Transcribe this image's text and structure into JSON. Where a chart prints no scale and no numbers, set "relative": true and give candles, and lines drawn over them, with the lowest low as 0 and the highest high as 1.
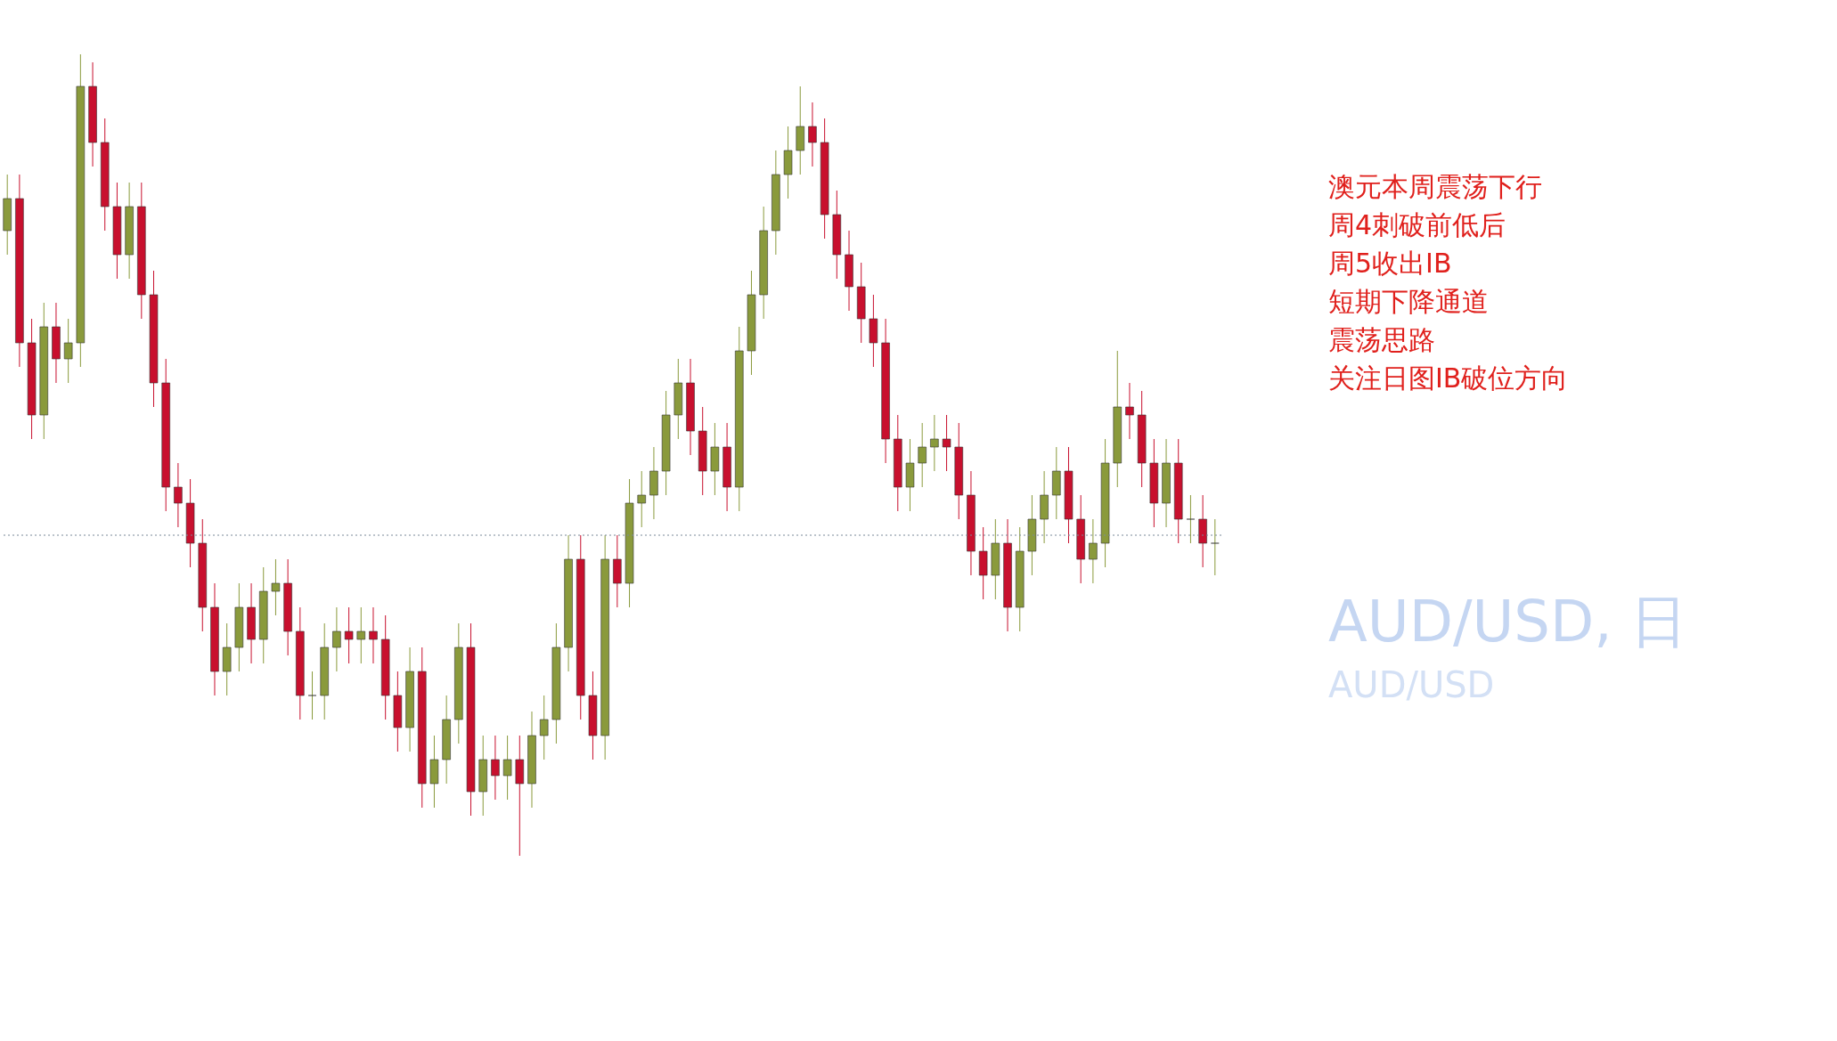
{
  "chart_data": {
    "type": "candlestick",
    "title": "AUD/USD, 日",
    "subtitle": "AUD/USD",
    "relative": true,
    "categories": [
      null,
      null,
      null,
      null,
      null,
      null,
      null,
      null,
      null,
      null,
      null,
      null,
      null,
      null,
      null,
      null,
      null,
      null,
      null,
      null,
      null,
      null,
      null,
      null,
      null,
      null,
      null,
      null,
      null,
      null,
      null,
      null,
      null,
      null,
      null,
      null,
      null,
      null,
      null,
      null,
      null,
      null,
      null,
      null,
      null,
      null,
      null,
      null,
      null,
      null,
      null,
      null,
      null,
      null,
      null,
      null,
      null,
      null,
      null,
      null,
      null,
      null,
      null,
      null,
      null,
      null,
      null,
      null,
      null,
      null,
      null,
      null,
      null,
      null,
      null,
      null,
      null,
      null,
      null,
      null,
      null,
      null,
      null,
      null,
      null,
      null,
      null,
      null,
      null,
      null,
      null,
      null,
      null,
      null,
      null,
      null,
      null,
      null,
      null,
      null
    ],
    "ohlc": [
      [
        0.78,
        0.85,
        0.75,
        0.82
      ],
      [
        0.82,
        0.85,
        0.61,
        0.64
      ],
      [
        0.64,
        0.67,
        0.52,
        0.55
      ],
      [
        0.55,
        0.69,
        0.52,
        0.66
      ],
      [
        0.66,
        0.69,
        0.59,
        0.62
      ],
      [
        0.62,
        0.67,
        0.59,
        0.64
      ],
      [
        0.64,
        1,
        0.61,
        0.96
      ],
      [
        0.96,
        0.99,
        0.86,
        0.89
      ],
      [
        0.89,
        0.92,
        0.78,
        0.81
      ],
      [
        0.81,
        0.84,
        0.72,
        0.75
      ],
      [
        0.75,
        0.84,
        0.72,
        0.81
      ],
      [
        0.81,
        0.84,
        0.67,
        0.7
      ],
      [
        0.7,
        0.73,
        0.56,
        0.59
      ],
      [
        0.59,
        0.62,
        0.43,
        0.46
      ],
      [
        0.46,
        0.49,
        0.41,
        0.44
      ],
      [
        0.44,
        0.47,
        0.36,
        0.39
      ],
      [
        0.39,
        0.42,
        0.28,
        0.31
      ],
      [
        0.31,
        0.34,
        0.2,
        0.23
      ],
      [
        0.23,
        0.29,
        0.2,
        0.26
      ],
      [
        0.26,
        0.34,
        0.23,
        0.31
      ],
      [
        0.31,
        0.34,
        0.24,
        0.27
      ],
      [
        0.27,
        0.36,
        0.24,
        0.33
      ],
      [
        0.33,
        0.37,
        0.3,
        0.34
      ],
      [
        0.34,
        0.37,
        0.25,
        0.28
      ],
      [
        0.28,
        0.31,
        0.17,
        0.2
      ],
      [
        0.2,
        0.23,
        0.17,
        0.2
      ],
      [
        0.2,
        0.29,
        0.17,
        0.26
      ],
      [
        0.26,
        0.31,
        0.23,
        0.28
      ],
      [
        0.28,
        0.31,
        0.24,
        0.27
      ],
      [
        0.27,
        0.31,
        0.24,
        0.28
      ],
      [
        0.28,
        0.31,
        0.24,
        0.27
      ],
      [
        0.27,
        0.3,
        0.17,
        0.2
      ],
      [
        0.2,
        0.23,
        0.13,
        0.16
      ],
      [
        0.16,
        0.26,
        0.13,
        0.23
      ],
      [
        0.23,
        0.26,
        0.06,
        0.09
      ],
      [
        0.09,
        0.15,
        0.06,
        0.12
      ],
      [
        0.12,
        0.2,
        0.09,
        0.17
      ],
      [
        0.17,
        0.29,
        0.14,
        0.26
      ],
      [
        0.26,
        0.29,
        0.05,
        0.08
      ],
      [
        0.08,
        0.15,
        0.05,
        0.12
      ],
      [
        0.12,
        0.15,
        0.07,
        0.1
      ],
      [
        0.1,
        0.15,
        0.07,
        0.12
      ],
      [
        0.12,
        0.15,
        0,
        0.09
      ],
      [
        0.09,
        0.18,
        0.06,
        0.15
      ],
      [
        0.15,
        0.2,
        0.12,
        0.17
      ],
      [
        0.17,
        0.29,
        0.14,
        0.26
      ],
      [
        0.26,
        0.4,
        0.23,
        0.37
      ],
      [
        0.37,
        0.4,
        0.17,
        0.2
      ],
      [
        0.2,
        0.23,
        0.12,
        0.15
      ],
      [
        0.15,
        0.4,
        0.12,
        0.37
      ],
      [
        0.37,
        0.4,
        0.31,
        0.34
      ],
      [
        0.34,
        0.47,
        0.31,
        0.44
      ],
      [
        0.44,
        0.48,
        0.41,
        0.45
      ],
      [
        0.45,
        0.51,
        0.42,
        0.48
      ],
      [
        0.48,
        0.58,
        0.45,
        0.55
      ],
      [
        0.55,
        0.62,
        0.52,
        0.59
      ],
      [
        0.59,
        0.62,
        0.5,
        0.53
      ],
      [
        0.53,
        0.56,
        0.45,
        0.48
      ],
      [
        0.48,
        0.54,
        0.45,
        0.51
      ],
      [
        0.51,
        0.54,
        0.43,
        0.46
      ],
      [
        0.46,
        0.66,
        0.43,
        0.63
      ],
      [
        0.63,
        0.73,
        0.6,
        0.7
      ],
      [
        0.7,
        0.81,
        0.67,
        0.78
      ],
      [
        0.78,
        0.88,
        0.75,
        0.85
      ],
      [
        0.85,
        0.91,
        0.82,
        0.88
      ],
      [
        0.88,
        0.96,
        0.85,
        0.91
      ],
      [
        0.91,
        0.94,
        0.86,
        0.89
      ],
      [
        0.89,
        0.92,
        0.77,
        0.8
      ],
      [
        0.8,
        0.83,
        0.72,
        0.75
      ],
      [
        0.75,
        0.78,
        0.68,
        0.71
      ],
      [
        0.71,
        0.74,
        0.64,
        0.67
      ],
      [
        0.67,
        0.7,
        0.61,
        0.64
      ],
      [
        0.64,
        0.67,
        0.49,
        0.52
      ],
      [
        0.52,
        0.55,
        0.43,
        0.46
      ],
      [
        0.46,
        0.52,
        0.43,
        0.49
      ],
      [
        0.49,
        0.54,
        0.46,
        0.51
      ],
      [
        0.51,
        0.55,
        0.48,
        0.52
      ],
      [
        0.52,
        0.55,
        0.48,
        0.51
      ],
      [
        0.51,
        0.54,
        0.42,
        0.45
      ],
      [
        0.45,
        0.48,
        0.35,
        0.38
      ],
      [
        0.38,
        0.41,
        0.32,
        0.35
      ],
      [
        0.35,
        0.42,
        0.32,
        0.39
      ],
      [
        0.39,
        0.42,
        0.28,
        0.31
      ],
      [
        0.31,
        0.41,
        0.28,
        0.38
      ],
      [
        0.38,
        0.45,
        0.35,
        0.42
      ],
      [
        0.42,
        0.48,
        0.39,
        0.45
      ],
      [
        0.45,
        0.51,
        0.42,
        0.48
      ],
      [
        0.48,
        0.51,
        0.39,
        0.42
      ],
      [
        0.42,
        0.45,
        0.34,
        0.37
      ],
      [
        0.37,
        0.42,
        0.34,
        0.39
      ],
      [
        0.39,
        0.52,
        0.36,
        0.49
      ],
      [
        0.49,
        0.63,
        0.46,
        0.56
      ],
      [
        0.56,
        0.59,
        0.52,
        0.55
      ],
      [
        0.55,
        0.58,
        0.46,
        0.49
      ],
      [
        0.49,
        0.52,
        0.41,
        0.44
      ],
      [
        0.44,
        0.52,
        0.41,
        0.49
      ],
      [
        0.49,
        0.52,
        0.39,
        0.42
      ],
      [
        0.42,
        0.45,
        0.39,
        0.42
      ],
      [
        0.42,
        0.45,
        0.36,
        0.39
      ],
      [
        0.39,
        0.42,
        0.35,
        0.39
      ]
    ],
    "ref_lines": [
      {
        "axis": "y",
        "value": 0.4,
        "color": "#7a8a99",
        "line_style": "dotted"
      }
    ],
    "annotations": [
      "澳元本周震荡下行",
      "周4刺破前低后",
      "周5收出IB",
      "短期下降通道",
      "震荡思路",
      "关注日图IB破位方向"
    ]
  }
}
